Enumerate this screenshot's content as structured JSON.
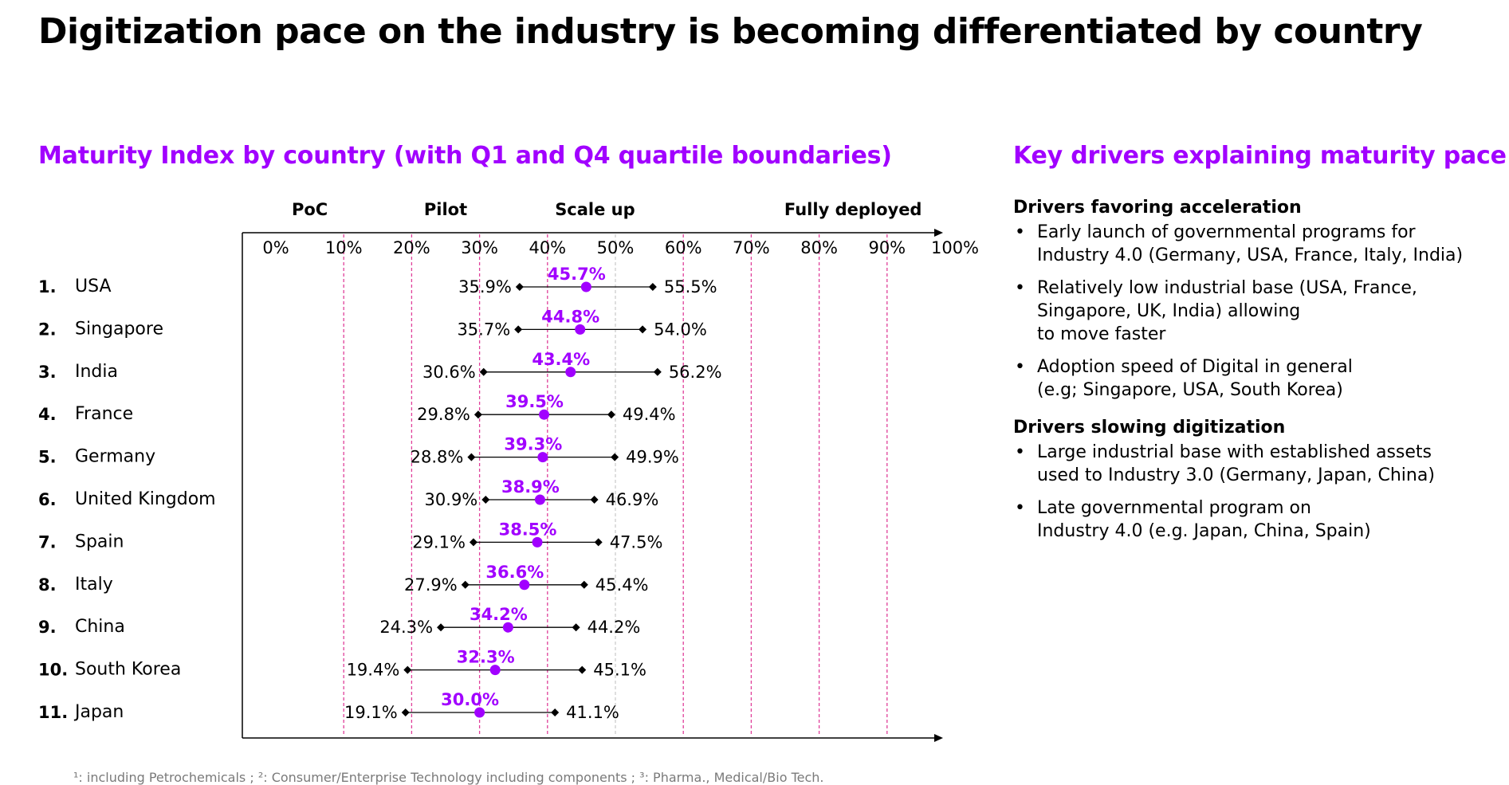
{
  "title": "Digitization pace on the industry is becoming differentiated by country",
  "chart_title": "Maturity Index by country (with Q1 and Q4 quartile boundaries)",
  "drivers_title": "Key drivers explaining maturity pace",
  "colors": {
    "accent": "#a100ff",
    "phase_line": "#e0409a",
    "grid_line": "#c8c8c8"
  },
  "chart_data": {
    "type": "dot-range",
    "phases": [
      "PoC",
      "Pilot",
      "Scale up",
      "Fully deployed"
    ],
    "x_ticks": [
      "0%",
      "10%",
      "20%",
      "30%",
      "40%",
      "50%",
      "60%",
      "70%",
      "80%",
      "90%",
      "100%"
    ],
    "xlim": [
      0,
      100
    ],
    "phase_boundaries": [
      10,
      20,
      30,
      40,
      60,
      70,
      80,
      90
    ],
    "plain_gridlines": [
      50
    ],
    "rows": [
      {
        "rank": "1.",
        "country": "USA",
        "q1": 35.9,
        "median": 45.7,
        "q4": 55.5,
        "q1_label": "35.9%",
        "median_label": "45.7%",
        "q4_label": "55.5%"
      },
      {
        "rank": "2.",
        "country": "Singapore",
        "q1": 35.7,
        "median": 44.8,
        "q4": 54.0,
        "q1_label": "35.7%",
        "median_label": "44.8%",
        "q4_label": "54.0%"
      },
      {
        "rank": "3.",
        "country": "India",
        "q1": 30.6,
        "median": 43.4,
        "q4": 56.2,
        "q1_label": "30.6%",
        "median_label": "43.4%",
        "q4_label": "56.2%"
      },
      {
        "rank": "4.",
        "country": "France",
        "q1": 29.8,
        "median": 39.5,
        "q4": 49.4,
        "q1_label": "29.8%",
        "median_label": "39.5%",
        "q4_label": "49.4%"
      },
      {
        "rank": "5.",
        "country": "Germany",
        "q1": 28.8,
        "median": 39.3,
        "q4": 49.9,
        "q1_label": "28.8%",
        "median_label": "39.3%",
        "q4_label": "49.9%"
      },
      {
        "rank": "6.",
        "country": "United Kingdom",
        "q1": 30.9,
        "median": 38.9,
        "q4": 46.9,
        "q1_label": "30.9%",
        "median_label": "38.9%",
        "q4_label": "46.9%"
      },
      {
        "rank": "7.",
        "country": "Spain",
        "q1": 29.1,
        "median": 38.5,
        "q4": 47.5,
        "q1_label": "29.1%",
        "median_label": "38.5%",
        "q4_label": "47.5%"
      },
      {
        "rank": "8.",
        "country": "Italy",
        "q1": 27.9,
        "median": 36.6,
        "q4": 45.4,
        "q1_label": "27.9%",
        "median_label": "36.6%",
        "q4_label": "45.4%"
      },
      {
        "rank": "9.",
        "country": "China",
        "q1": 24.3,
        "median": 34.2,
        "q4": 44.2,
        "q1_label": "24.3%",
        "median_label": "34.2%",
        "q4_label": "44.2%"
      },
      {
        "rank": "10.",
        "country": "South Korea",
        "q1": 19.4,
        "median": 32.3,
        "q4": 45.1,
        "q1_label": "19.4%",
        "median_label": "32.3%",
        "q4_label": "45.1%"
      },
      {
        "rank": "11.",
        "country": "Japan",
        "q1": 19.1,
        "median": 30.0,
        "q4": 41.1,
        "q1_label": "19.1%",
        "median_label": "30.0%",
        "q4_label": "41.1%"
      }
    ]
  },
  "drivers": {
    "acceleration": {
      "heading": "Drivers favoring acceleration",
      "items": [
        "Early launch of governmental programs for\nIndustry 4.0 (Germany, USA, France, Italy, India)",
        "Relatively low industrial base (USA, France,\nSingapore, UK, India) allowing\nto move faster",
        "Adoption speed of Digital in general\n(e.g; Singapore, USA, South Korea)"
      ]
    },
    "slowing": {
      "heading": "Drivers slowing digitization",
      "items": [
        "Large industrial base with established assets\nused to Industry 3.0 (Germany, Japan, China)",
        "Late governmental program on\nIndustry 4.0 (e.g. Japan, China, Spain)"
      ]
    }
  },
  "footnote": "¹: including Petrochemicals ; ²: Consumer/Enterprise Technology including components ; ³: Pharma., Medical/Bio Tech."
}
